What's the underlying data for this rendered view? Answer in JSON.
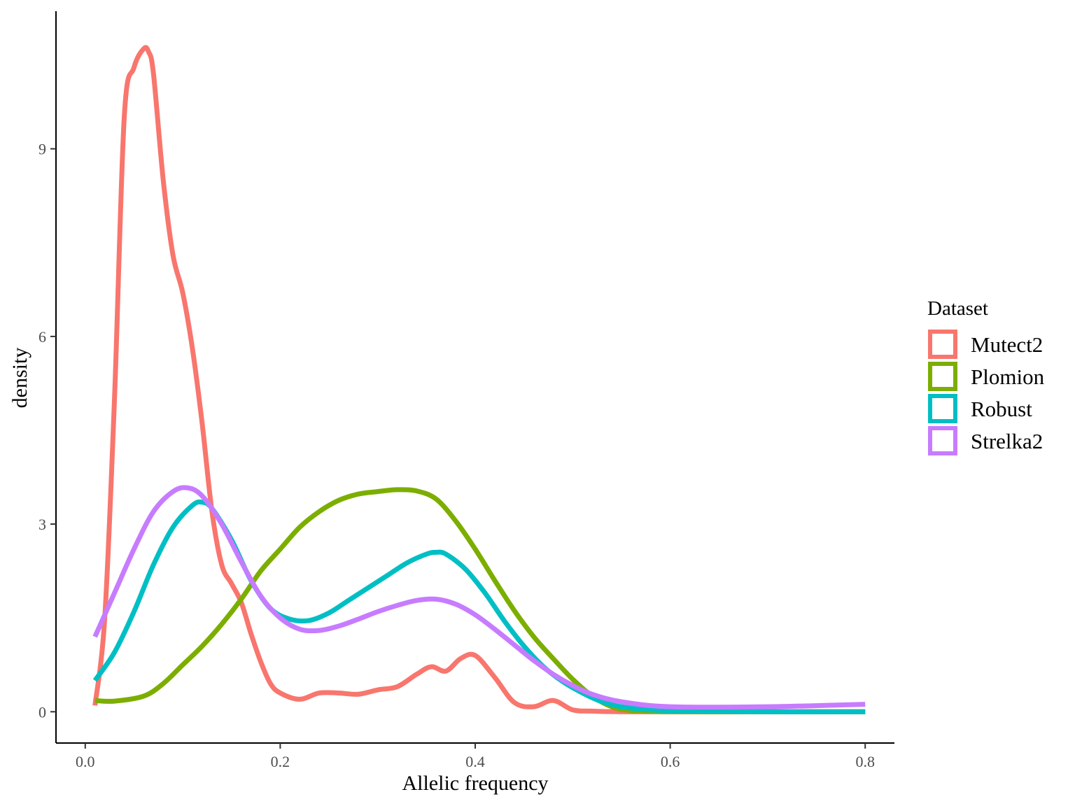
{
  "chart_data": {
    "type": "line",
    "xlabel": "Allelic frequency",
    "ylabel": "density",
    "xlim": [
      -0.03,
      0.83
    ],
    "ylim": [
      -0.5,
      11.2
    ],
    "x_ticks": [
      {
        "value": 0.0,
        "label": "0.0"
      },
      {
        "value": 0.2,
        "label": "0.2"
      },
      {
        "value": 0.4,
        "label": "0.4"
      },
      {
        "value": 0.6,
        "label": "0.6"
      },
      {
        "value": 0.8,
        "label": "0.8"
      }
    ],
    "y_ticks": [
      {
        "value": 0,
        "label": "0"
      },
      {
        "value": 3,
        "label": "3"
      },
      {
        "value": 6,
        "label": "6"
      },
      {
        "value": 9,
        "label": "9"
      }
    ],
    "grid": false,
    "legend": {
      "title": "Dataset",
      "position": "right"
    },
    "series": [
      {
        "name": "Mutect2",
        "color": "#F8766D",
        "x": [
          0.01,
          0.02,
          0.03,
          0.04,
          0.05,
          0.06,
          0.065,
          0.07,
          0.08,
          0.09,
          0.1,
          0.11,
          0.12,
          0.13,
          0.14,
          0.15,
          0.16,
          0.17,
          0.18,
          0.19,
          0.2,
          0.22,
          0.24,
          0.26,
          0.28,
          0.3,
          0.32,
          0.34,
          0.355,
          0.37,
          0.385,
          0.4,
          0.42,
          0.44,
          0.46,
          0.48,
          0.5,
          0.52,
          0.55,
          0.6,
          0.7,
          0.8
        ],
        "y": [
          0.1,
          1.5,
          5.0,
          9.5,
          10.3,
          10.6,
          10.55,
          10.2,
          8.5,
          7.3,
          6.7,
          5.8,
          4.6,
          3.2,
          2.35,
          2.05,
          1.75,
          1.25,
          0.8,
          0.45,
          0.3,
          0.2,
          0.3,
          0.3,
          0.28,
          0.35,
          0.4,
          0.6,
          0.72,
          0.65,
          0.85,
          0.9,
          0.55,
          0.15,
          0.08,
          0.18,
          0.03,
          0.01,
          0.0,
          0.0,
          0.0,
          0.0
        ]
      },
      {
        "name": "Plomion",
        "color": "#7CAE00",
        "x": [
          0.01,
          0.03,
          0.06,
          0.08,
          0.1,
          0.12,
          0.14,
          0.16,
          0.18,
          0.2,
          0.22,
          0.24,
          0.26,
          0.28,
          0.3,
          0.32,
          0.34,
          0.36,
          0.38,
          0.4,
          0.42,
          0.44,
          0.46,
          0.48,
          0.5,
          0.52,
          0.54,
          0.56,
          0.6,
          0.7,
          0.8
        ],
        "y": [
          0.18,
          0.17,
          0.25,
          0.45,
          0.75,
          1.05,
          1.4,
          1.8,
          2.25,
          2.6,
          2.95,
          3.2,
          3.38,
          3.48,
          3.52,
          3.55,
          3.53,
          3.4,
          3.05,
          2.6,
          2.1,
          1.62,
          1.2,
          0.85,
          0.52,
          0.25,
          0.08,
          0.02,
          0.0,
          0.0,
          0.0
        ]
      },
      {
        "name": "Robust",
        "color": "#00BFC4",
        "x": [
          0.01,
          0.03,
          0.05,
          0.07,
          0.09,
          0.11,
          0.12,
          0.13,
          0.15,
          0.17,
          0.19,
          0.21,
          0.23,
          0.25,
          0.27,
          0.29,
          0.31,
          0.33,
          0.35,
          0.36,
          0.37,
          0.39,
          0.41,
          0.43,
          0.45,
          0.47,
          0.49,
          0.51,
          0.53,
          0.55,
          0.58,
          0.62,
          0.7,
          0.8
        ],
        "y": [
          0.5,
          0.95,
          1.6,
          2.35,
          2.95,
          3.3,
          3.35,
          3.25,
          2.75,
          2.1,
          1.65,
          1.48,
          1.46,
          1.58,
          1.78,
          1.98,
          2.18,
          2.38,
          2.52,
          2.55,
          2.52,
          2.28,
          1.9,
          1.45,
          1.05,
          0.72,
          0.48,
          0.3,
          0.16,
          0.08,
          0.03,
          0.01,
          0.0,
          0.0
        ]
      },
      {
        "name": "Strelka2",
        "color": "#C77CFF",
        "x": [
          0.01,
          0.03,
          0.05,
          0.07,
          0.09,
          0.105,
          0.12,
          0.14,
          0.16,
          0.18,
          0.2,
          0.22,
          0.24,
          0.26,
          0.28,
          0.3,
          0.32,
          0.34,
          0.36,
          0.38,
          0.4,
          0.42,
          0.44,
          0.46,
          0.48,
          0.5,
          0.52,
          0.55,
          0.6,
          0.7,
          0.8
        ],
        "y": [
          1.2,
          1.9,
          2.6,
          3.2,
          3.52,
          3.58,
          3.45,
          3.0,
          2.4,
          1.85,
          1.5,
          1.32,
          1.3,
          1.37,
          1.48,
          1.6,
          1.7,
          1.78,
          1.8,
          1.72,
          1.55,
          1.32,
          1.07,
          0.82,
          0.6,
          0.42,
          0.28,
          0.16,
          0.08,
          0.08,
          0.12
        ]
      }
    ]
  }
}
